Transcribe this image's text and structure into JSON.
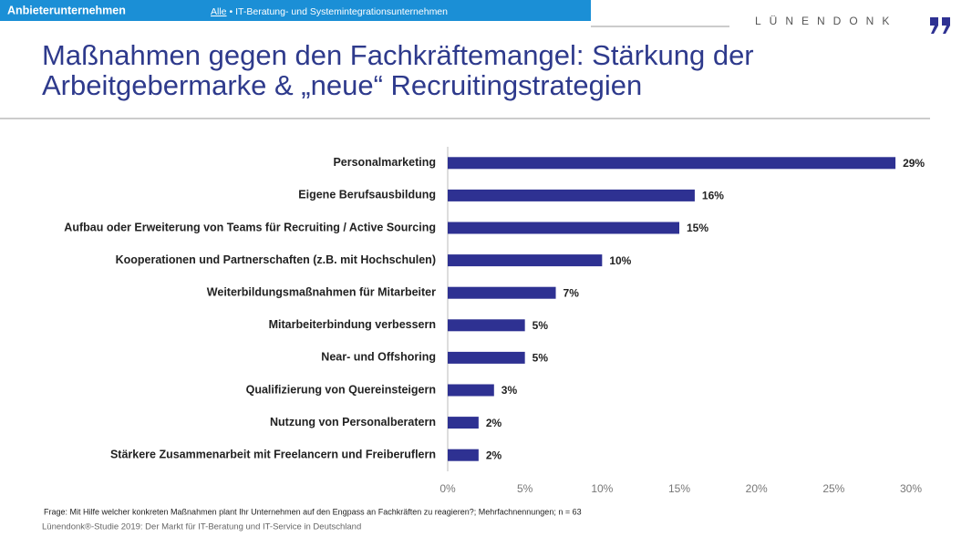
{
  "header": {
    "section": "Anbieterunternehmen",
    "filter_link": "Alle",
    "filter_text": "• IT-Beratung- und Systemintegrationsunternehmen",
    "logo": "LÜNENDONK"
  },
  "chart_data": {
    "type": "hbar",
    "title": "Maßnahmen gegen den Fachkräftemangel: Stärkung der Arbeitgebermarke & „neue“ Recruitingstrategien",
    "categories": [
      "Personalmarketing",
      "Eigene Berufsausbildung",
      "Aufbau oder Erweiterung von Teams für Recruiting  / Active Sourcing",
      "Kooperationen und Partnerschaften (z.B. mit Hochschulen)",
      "Weiterbildungsmaßnahmen für Mitarbeiter",
      "Mitarbeiterbindung verbessern",
      "Near- und Offshoring",
      "Qualifizierung von Quereinsteigern",
      "Nutzung von Personalberatern",
      "Stärkere Zusammenarbeit mit Freelancern und Freiberuflern"
    ],
    "values": [
      29,
      16,
      15,
      10,
      7,
      5,
      5,
      3,
      2,
      2
    ],
    "value_labels": [
      "29%",
      "16%",
      "15%",
      "10%",
      "7%",
      "5%",
      "5%",
      "3%",
      "2%",
      "2%"
    ],
    "color": "#2e3192",
    "xlim": [
      0,
      30
    ],
    "xticks": [
      {
        "value": 0,
        "label": "0%"
      },
      {
        "value": 5,
        "label": "5%"
      },
      {
        "value": 10,
        "label": "10%"
      },
      {
        "value": 15,
        "label": "15%"
      },
      {
        "value": 20,
        "label": "20%"
      },
      {
        "value": 25,
        "label": "25%"
      },
      {
        "value": 30,
        "label": "30%"
      }
    ],
    "grid": false,
    "footnote": "Frage: Mit Hilfe welcher konkreten Maßnahmen plant Ihr Unternehmen auf den Engpass an Fachkräften zu reagieren?; Mehrfachnennungen; n = 63",
    "source": "Lünendonk®-Studie  2019: Der Markt für IT-Beratung und IT-Service in Deutschland"
  }
}
